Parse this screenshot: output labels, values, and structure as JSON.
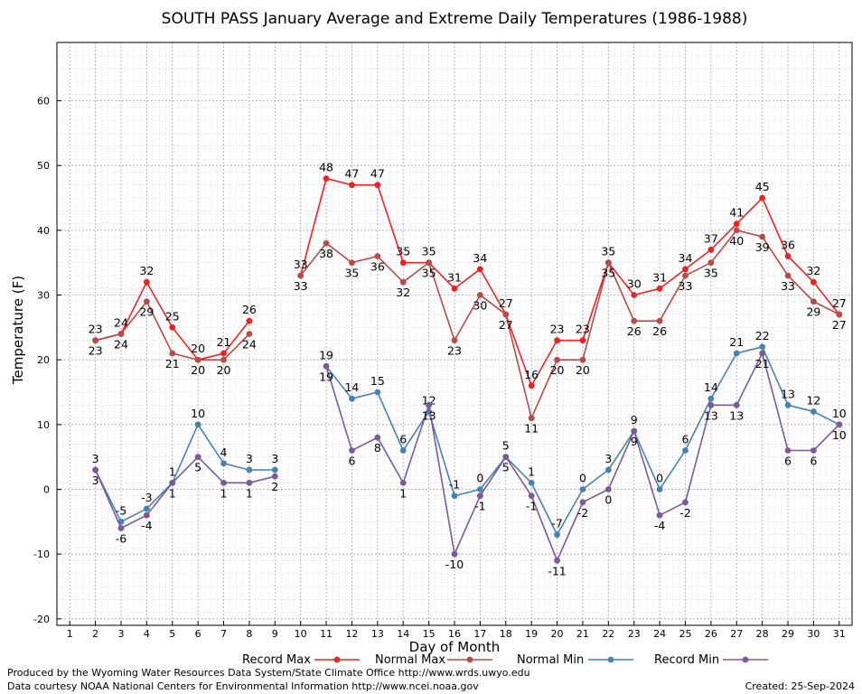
{
  "chart_data": {
    "type": "line",
    "title": "SOUTH PASS January Average and Extreme Daily Temperatures (1986-1988)",
    "xlabel": "Day of Month",
    "ylabel": "Temperature (F)",
    "ylim": [
      -21,
      69
    ],
    "xlim": [
      0.5,
      31.5
    ],
    "y_ticks": [
      -20,
      -10,
      0,
      10,
      20,
      30,
      40,
      50,
      60
    ],
    "x_ticks": [
      "1",
      "2",
      "3",
      "4",
      "5",
      "6",
      "7",
      "8",
      "9",
      "10",
      "11",
      "12",
      "13",
      "14",
      "15",
      "16",
      "17",
      "18",
      "19",
      "20",
      "21",
      "22",
      "23",
      "24",
      "25",
      "26",
      "27",
      "28",
      "29",
      "30",
      "31"
    ],
    "grid": true,
    "legend_placement": "bottom",
    "series": [
      {
        "name": "Record Max",
        "color": "#ee2222",
        "x": [
          2,
          3,
          4,
          5,
          6,
          7,
          8,
          9,
          10,
          11,
          12,
          13,
          14,
          15,
          16,
          17,
          18,
          19,
          20,
          21,
          22,
          23,
          24,
          25,
          26,
          27,
          28,
          29,
          30,
          31
        ],
        "values": [
          23,
          24,
          32,
          25,
          20,
          21,
          26,
          null,
          33,
          48,
          47,
          47,
          35,
          35,
          31,
          34,
          27,
          16,
          23,
          23,
          35,
          30,
          31,
          34,
          37,
          41,
          45,
          36,
          32,
          27
        ],
        "labels": [
          "23",
          "24",
          "32",
          "25",
          "20",
          "21",
          "26",
          "",
          "33",
          "48",
          "47",
          "47",
          "35",
          "35",
          "31",
          "34",
          "27",
          "16",
          "23",
          "23",
          "35",
          "30",
          "31",
          "34",
          "37",
          "41",
          "45",
          "36",
          "32",
          "27"
        ]
      },
      {
        "name": "Normal Max",
        "color": "#b84a4a",
        "x": [
          2,
          3,
          4,
          5,
          6,
          7,
          8,
          9,
          10,
          11,
          12,
          13,
          14,
          15,
          16,
          17,
          18,
          19,
          20,
          21,
          22,
          23,
          24,
          25,
          26,
          27,
          28,
          29,
          30,
          31
        ],
        "values": [
          23,
          24,
          29,
          21,
          20,
          20,
          24,
          null,
          33,
          38,
          35,
          36,
          32,
          35,
          23,
          30,
          27,
          11,
          20,
          20,
          35,
          26,
          26,
          33,
          35,
          40,
          39,
          33,
          29,
          27
        ],
        "labels": [
          "23",
          "24",
          "29",
          "21",
          "20",
          "20",
          "24",
          "",
          "33",
          "38",
          "35",
          "36",
          "32",
          "35",
          "23",
          "30",
          "27",
          "11",
          "20",
          "20",
          "35",
          "26",
          "26",
          "33",
          "35",
          "40",
          "39",
          "33",
          "29",
          "27"
        ]
      },
      {
        "name": "Normal Min",
        "color": "#4682b4",
        "x": [
          2,
          3,
          4,
          5,
          6,
          7,
          8,
          9,
          10,
          11,
          12,
          13,
          14,
          15,
          16,
          17,
          18,
          19,
          20,
          21,
          22,
          23,
          24,
          25,
          26,
          27,
          28,
          29,
          30,
          31
        ],
        "values": [
          3,
          -5,
          -3,
          1,
          10,
          4,
          3,
          3,
          null,
          19,
          14,
          15,
          6,
          12,
          -1,
          0,
          5,
          1,
          -7,
          0,
          3,
          9,
          0,
          6,
          14,
          21,
          22,
          13,
          12,
          10
        ],
        "labels": [
          "3",
          "-5",
          "-3",
          "1",
          "10",
          "4",
          "3",
          "3",
          "",
          "19",
          "14",
          "15",
          "6",
          "12",
          "-1",
          "0",
          "5",
          "1",
          "-7",
          "0",
          "3",
          "9",
          "0",
          "6",
          "14",
          "21",
          "22",
          "13",
          "12",
          "10"
        ]
      },
      {
        "name": "Record Min",
        "color": "#7a5a9a",
        "x": [
          2,
          3,
          4,
          5,
          6,
          7,
          8,
          9,
          10,
          11,
          12,
          13,
          14,
          15,
          16,
          17,
          18,
          19,
          20,
          21,
          22,
          23,
          24,
          25,
          26,
          27,
          28,
          29,
          30,
          31
        ],
        "values": [
          3,
          -6,
          -4,
          1,
          5,
          1,
          1,
          2,
          null,
          19,
          6,
          8,
          1,
          13,
          -10,
          -1,
          5,
          -1,
          -11,
          -2,
          0,
          9,
          -4,
          -2,
          13,
          13,
          21,
          6,
          6,
          10
        ],
        "labels": [
          "3",
          "-6",
          "-4",
          "1",
          "5",
          "1",
          "1",
          "2",
          "",
          "19",
          "6",
          "8",
          "1",
          "13",
          "-10",
          "-1",
          "5",
          "-1",
          "-11",
          "-2",
          "0",
          "9",
          "-4",
          "-2",
          "13",
          "13",
          "21",
          "6",
          "6",
          "10"
        ]
      }
    ]
  },
  "legend": {
    "record_max": "Record Max",
    "normal_max": "Normal Max",
    "normal_min": "Normal Min",
    "record_min": "Record Min"
  },
  "footer": {
    "line1": "Produced by the Wyoming Water Resources Data System/State Climate Office http://www.wrds.uwyo.edu",
    "line2": "Data courtesy NOAA National Centers for Environmental Information http://www.ncei.noaa.gov",
    "created": "Created:  25-Sep-2024"
  }
}
